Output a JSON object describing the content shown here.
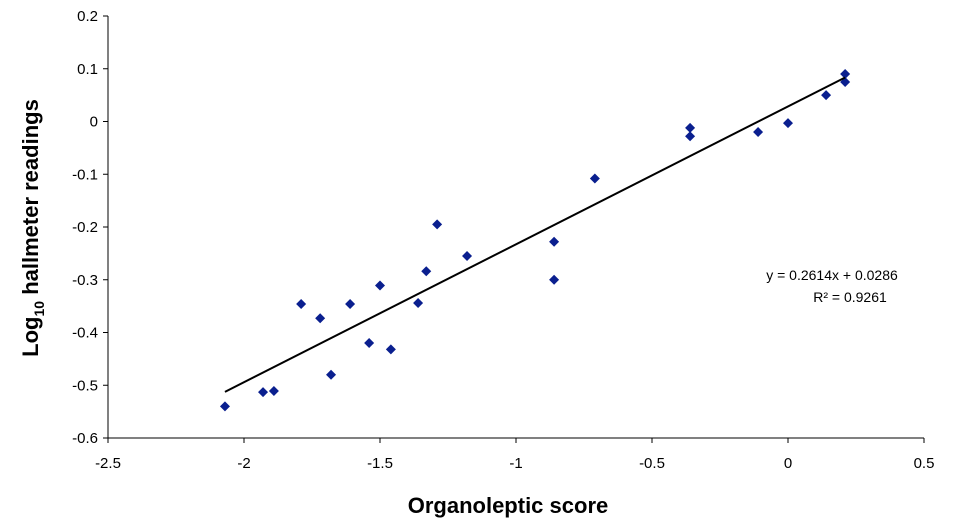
{
  "chart_data": {
    "type": "scatter",
    "title": "",
    "xlabel": "Organoleptic score",
    "ylabel_prefix": "Log",
    "ylabel_subscript": "10",
    "ylabel_suffix": " hallmeter readings",
    "xlim": [
      -2.5,
      0.5
    ],
    "ylim": [
      -0.6,
      0.2
    ],
    "x_ticks": [
      -2.5,
      -2,
      -1.5,
      -1,
      -0.5,
      0,
      0.5
    ],
    "x_tick_labels": [
      "-2.5",
      "-2",
      "-1.5",
      "-1",
      "-0.5",
      "0",
      "0.5"
    ],
    "y_ticks": [
      0.2,
      0.1,
      0,
      -0.1,
      -0.2,
      -0.3,
      -0.4,
      -0.5,
      -0.6
    ],
    "y_tick_labels": [
      "0.2",
      "0.1",
      "0",
      "-0.1",
      "-0.2",
      "-0.3",
      "-0.4",
      "-0.5",
      "-0.6"
    ],
    "grid": false,
    "legend": "none",
    "marker_color": "#0a1f8f",
    "points": [
      {
        "x": -2.07,
        "y": -0.54
      },
      {
        "x": -1.93,
        "y": -0.513
      },
      {
        "x": -1.89,
        "y": -0.511
      },
      {
        "x": -1.79,
        "y": -0.346
      },
      {
        "x": -1.72,
        "y": -0.373
      },
      {
        "x": -1.68,
        "y": -0.48
      },
      {
        "x": -1.61,
        "y": -0.346
      },
      {
        "x": -1.54,
        "y": -0.42
      },
      {
        "x": -1.5,
        "y": -0.311
      },
      {
        "x": -1.46,
        "y": -0.432
      },
      {
        "x": -1.36,
        "y": -0.344
      },
      {
        "x": -1.33,
        "y": -0.284
      },
      {
        "x": -1.29,
        "y": -0.195
      },
      {
        "x": -1.18,
        "y": -0.255
      },
      {
        "x": -0.86,
        "y": -0.228
      },
      {
        "x": -0.86,
        "y": -0.3
      },
      {
        "x": -0.71,
        "y": -0.108
      },
      {
        "x": -0.36,
        "y": -0.012
      },
      {
        "x": -0.36,
        "y": -0.028
      },
      {
        "x": -0.11,
        "y": -0.02
      },
      {
        "x": 0.0,
        "y": -0.003
      },
      {
        "x": 0.14,
        "y": 0.05
      },
      {
        "x": 0.21,
        "y": 0.075
      },
      {
        "x": 0.21,
        "y": 0.09
      }
    ],
    "trendline": {
      "slope": 0.2614,
      "intercept": 0.0286,
      "x_range": [
        -2.07,
        0.21
      ],
      "equation_label": "y = 0.2614x + 0.0286",
      "r2_label": "R² = 0.9261"
    }
  }
}
